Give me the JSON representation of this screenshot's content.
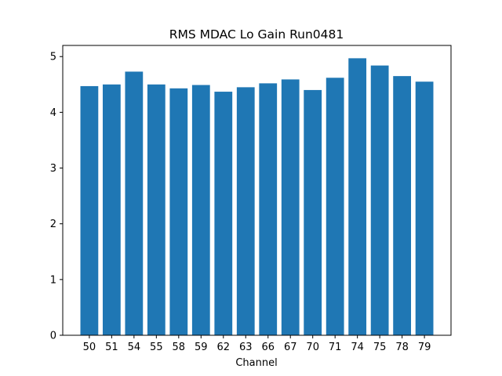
{
  "chart_data": {
    "type": "bar",
    "title": "RMS MDAC Lo Gain Run0481",
    "xlabel": "Channel",
    "ylabel": "",
    "categories": [
      "50",
      "51",
      "54",
      "55",
      "58",
      "59",
      "62",
      "63",
      "66",
      "67",
      "70",
      "71",
      "74",
      "75",
      "78",
      "79"
    ],
    "values": [
      4.47,
      4.5,
      4.73,
      4.5,
      4.43,
      4.49,
      4.37,
      4.45,
      4.52,
      4.59,
      4.4,
      4.62,
      4.97,
      4.84,
      4.65,
      4.55
    ],
    "ylim": [
      0,
      5.2
    ],
    "yticks": [
      0,
      1,
      2,
      3,
      4,
      5
    ],
    "bar_color": "#1f77b4",
    "grid": false,
    "legend": "none"
  }
}
